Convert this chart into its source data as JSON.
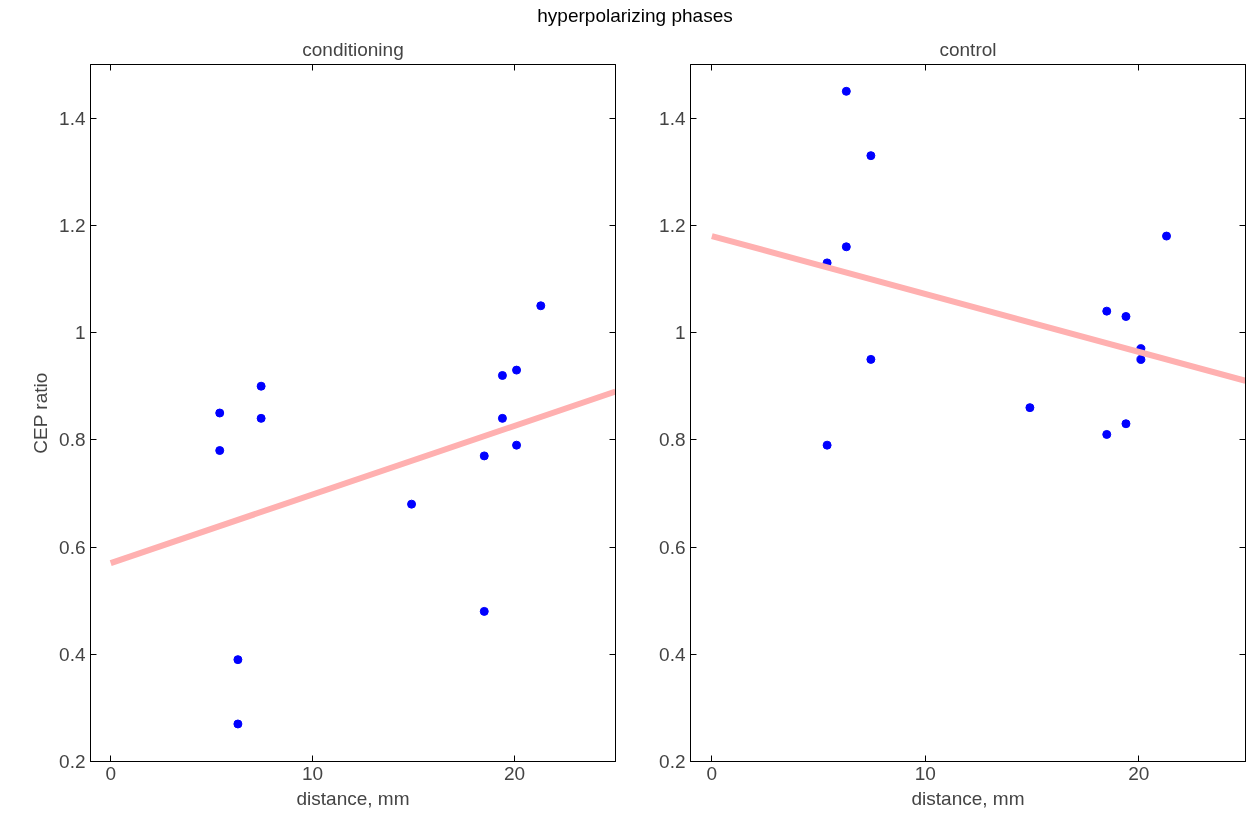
{
  "chart_data": [
    {
      "type": "scatter",
      "title": "conditioning",
      "xlabel": "distance, mm",
      "ylabel": "CEP ratio",
      "annotations": [
        "hyperpolarizing phases"
      ],
      "xlim": [
        -1,
        25
      ],
      "ylim": [
        0.2,
        1.5
      ],
      "xticks": [
        0,
        10,
        20
      ],
      "yticks": [
        0.2,
        0.4,
        0.6,
        0.8,
        1,
        1.2,
        1.4
      ],
      "grid": false,
      "series": [
        {
          "marker": "circle",
          "color": "#0000ff",
          "x": [
            5.4,
            5.4,
            6.3,
            6.3,
            7.45,
            7.45,
            14.9,
            18.5,
            18.5,
            19.4,
            19.4,
            20.1,
            20.1,
            21.3
          ],
          "values": [
            0.85,
            0.78,
            0.39,
            0.27,
            0.9,
            0.84,
            0.68,
            0.77,
            0.48,
            0.92,
            0.84,
            0.93,
            0.79,
            1.05
          ]
        },
        {
          "type": "line",
          "color": "#ffb0b0",
          "x": [
            0,
            25
          ],
          "values": [
            0.57,
            0.89
          ]
        }
      ]
    },
    {
      "type": "scatter",
      "title": "control",
      "xlabel": "distance, mm",
      "xlim": [
        -1,
        25
      ],
      "ylim": [
        0.2,
        1.5
      ],
      "xticks": [
        0,
        10,
        20
      ],
      "yticks": [
        0.2,
        0.4,
        0.6,
        0.8,
        1,
        1.2,
        1.4
      ],
      "grid": false,
      "series": [
        {
          "marker": "circle",
          "color": "#0000ff",
          "x": [
            5.4,
            5.4,
            6.3,
            6.3,
            7.45,
            7.45,
            14.9,
            18.5,
            18.5,
            19.4,
            19.4,
            20.1,
            20.1,
            21.3
          ],
          "values": [
            1.13,
            0.79,
            1.45,
            1.16,
            1.33,
            0.95,
            0.86,
            1.04,
            0.81,
            1.03,
            0.83,
            0.97,
            0.95,
            1.18
          ]
        },
        {
          "type": "line",
          "color": "#ffb0b0",
          "x": [
            0,
            25
          ],
          "values": [
            1.18,
            0.91
          ]
        }
      ]
    }
  ]
}
